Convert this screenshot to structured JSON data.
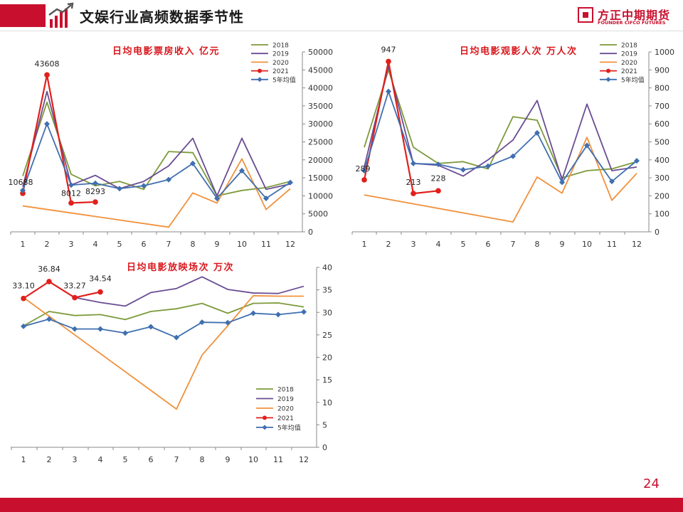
{
  "header": {
    "title": "文娱行业高频数据季节性",
    "brand_cn": "方正中期期货",
    "brand_en": "FOUNDER CIFCO FUTURES"
  },
  "footer": {
    "page_number": "24"
  },
  "colors": {
    "2018": "#7d9a3a",
    "2019": "#6a4c93",
    "2020": "#f0913c",
    "2021": "#e0201b",
    "avg": "#3f6fb0",
    "title_red": "#d9181e",
    "brand_red": "#c8102e"
  },
  "chart_data": [
    {
      "type": "line",
      "title": "日均电影票房收入 亿元",
      "categories": [
        "1",
        "2",
        "3",
        "4",
        "5",
        "6",
        "7",
        "8",
        "9",
        "10",
        "11",
        "12"
      ],
      "ylim": [
        0,
        50000
      ],
      "yticks": [
        "0",
        "5000",
        "10000",
        "15000",
        "20000",
        "25000",
        "30000",
        "35000",
        "40000",
        "45000",
        "50000"
      ],
      "y_axis_side": "right",
      "legend_position": "top-right",
      "series": [
        {
          "name": "2018",
          "key": "2018",
          "values": [
            15500,
            36000,
            16000,
            12800,
            14000,
            11800,
            22300,
            22000,
            10000,
            11500,
            12300,
            14000
          ]
        },
        {
          "name": "2019",
          "key": "2019",
          "values": [
            12500,
            39000,
            13000,
            15700,
            12000,
            14000,
            18300,
            26000,
            10000,
            26000,
            11800,
            13300
          ]
        },
        {
          "name": "2020",
          "key": "2020",
          "values": [
            7200,
            null,
            null,
            null,
            null,
            null,
            1300,
            10800,
            8000,
            20300,
            6200,
            12000
          ]
        },
        {
          "name": "2021",
          "key": "2021",
          "values": [
            10688,
            43608,
            8012,
            8293,
            null,
            null,
            null,
            null,
            null,
            null,
            null,
            null
          ]
        },
        {
          "name": "5年均值",
          "key": "avg",
          "values": [
            11500,
            30000,
            13000,
            13500,
            12000,
            12800,
            14500,
            19000,
            9300,
            17000,
            9300,
            13700
          ]
        }
      ],
      "data_labels": [
        {
          "series": "2021",
          "index": 0,
          "text": "10688"
        },
        {
          "series": "2021",
          "index": 1,
          "text": "43608"
        },
        {
          "series": "2021",
          "index": 2,
          "text": "8012"
        },
        {
          "series": "2021",
          "index": 3,
          "text": "8293"
        }
      ]
    },
    {
      "type": "line",
      "title": "日均电影观影人次 万人次",
      "categories": [
        "1",
        "2",
        "3",
        "4",
        "5",
        "6",
        "7",
        "8",
        "9",
        "10",
        "11",
        "12"
      ],
      "ylim": [
        0,
        1000
      ],
      "yticks": [
        "0",
        "100",
        "200",
        "300",
        "400",
        "500",
        "600",
        "700",
        "800",
        "900",
        "1000"
      ],
      "y_axis_side": "right",
      "legend_position": "top-right",
      "series": [
        {
          "name": "2018",
          "key": "2018",
          "values": [
            470,
            900,
            470,
            380,
            390,
            350,
            640,
            620,
            300,
            340,
            350,
            390
          ]
        },
        {
          "name": "2019",
          "key": "2019",
          "values": [
            360,
            920,
            380,
            370,
            310,
            400,
            510,
            730,
            290,
            710,
            340,
            360
          ]
        },
        {
          "name": "2020",
          "key": "2020",
          "values": [
            205,
            null,
            null,
            null,
            null,
            null,
            55,
            305,
            215,
            525,
            175,
            325
          ]
        },
        {
          "name": "2021",
          "key": "2021",
          "values": [
            289,
            947,
            213,
            228,
            null,
            null,
            null,
            null,
            null,
            null,
            null,
            null
          ]
        },
        {
          "name": "5年均值",
          "key": "avg",
          "values": [
            340,
            780,
            380,
            375,
            345,
            365,
            420,
            550,
            275,
            480,
            280,
            395
          ]
        }
      ],
      "data_labels": [
        {
          "series": "2021",
          "index": 0,
          "text": "289"
        },
        {
          "series": "2021",
          "index": 1,
          "text": "947"
        },
        {
          "series": "2021",
          "index": 2,
          "text": "213"
        },
        {
          "series": "2021",
          "index": 3,
          "text": "228"
        }
      ]
    },
    {
      "type": "line",
      "title": "日均电影放映场次 万次",
      "categories": [
        "1",
        "2",
        "3",
        "4",
        "5",
        "6",
        "7",
        "8",
        "9",
        "10",
        "11",
        "12"
      ],
      "ylim": [
        0,
        40
      ],
      "yticks": [
        "0",
        "5",
        "10",
        "15",
        "20",
        "25",
        "30",
        "35",
        "40"
      ],
      "y_axis_side": "right",
      "legend_position": "bottom-right",
      "series": [
        {
          "name": "2018",
          "key": "2018",
          "values": [
            27,
            30.2,
            29.3,
            29.5,
            28.4,
            30.2,
            30.8,
            32,
            29.8,
            32,
            32.1,
            31.2
          ]
        },
        {
          "name": "2019",
          "key": "2019",
          "values": [
            null,
            null,
            33.3,
            32.2,
            31.4,
            34.4,
            35.3,
            37.9,
            35.1,
            34.3,
            34.2,
            35.8
          ]
        },
        {
          "name": "2020",
          "key": "2020",
          "values": [
            33.3,
            null,
            null,
            null,
            null,
            null,
            8.5,
            20.5,
            27,
            33.7,
            33.6,
            33.6
          ]
        },
        {
          "name": "2021",
          "key": "2021",
          "values": [
            33.1,
            36.84,
            33.27,
            34.54,
            null,
            null,
            null,
            null,
            null,
            null,
            null,
            null
          ]
        },
        {
          "name": "5年均值",
          "key": "avg",
          "values": [
            26.9,
            28.5,
            26.3,
            26.3,
            25.4,
            26.8,
            24.4,
            27.8,
            27.7,
            29.8,
            29.5,
            30.1
          ]
        }
      ],
      "data_labels": [
        {
          "series": "2021",
          "index": 0,
          "text": "33.10"
        },
        {
          "series": "2021",
          "index": 1,
          "text": "36.84"
        },
        {
          "series": "2021",
          "index": 2,
          "text": "33.27"
        },
        {
          "series": "2021",
          "index": 3,
          "text": "34.54"
        }
      ]
    }
  ]
}
